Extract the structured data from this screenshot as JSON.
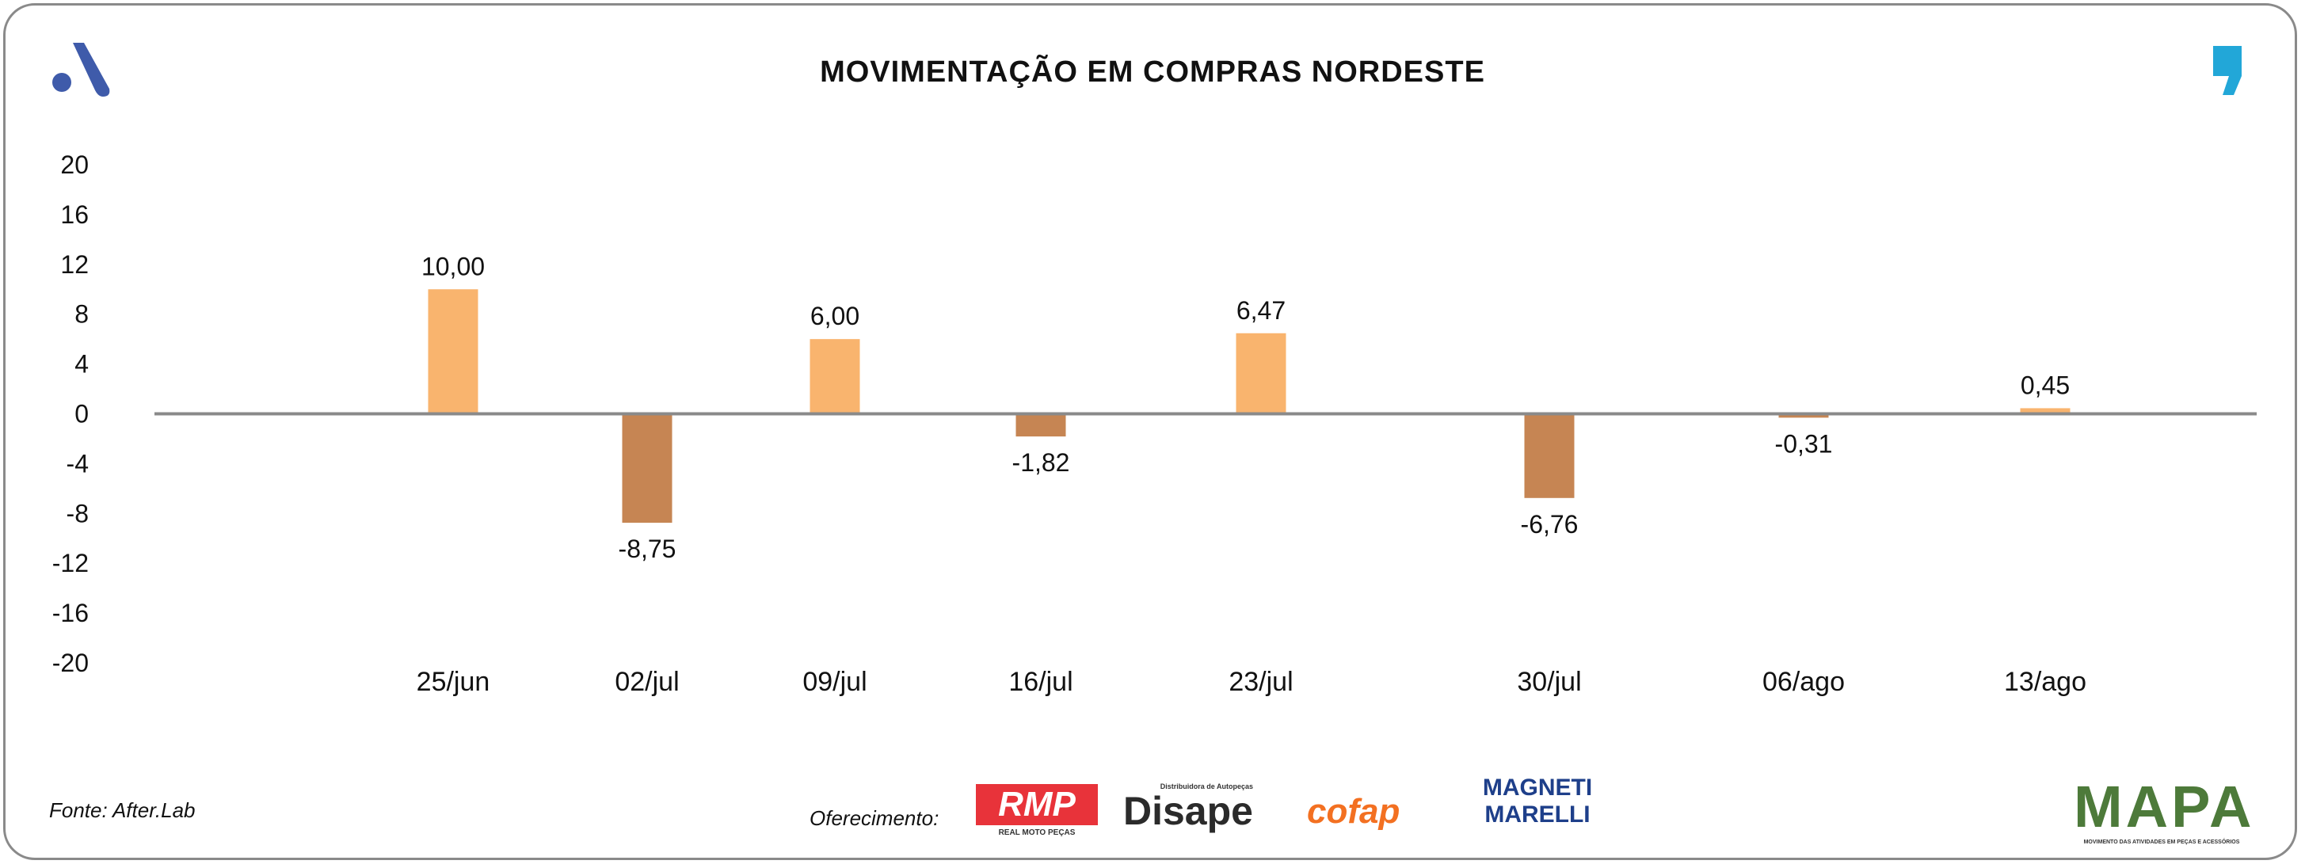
{
  "title": "MOVIMENTAÇÃO EM COMPRAS NORDESTE",
  "footer": {
    "source": "Fonte: After.Lab",
    "sponsor_label": "Oferecimento:",
    "sponsors": [
      "RMP",
      "Disape",
      "cofap",
      "MAGNETI MARELLI"
    ],
    "rmp_sub": "REAL MOTO PEÇAS",
    "disape_sub": "Distribuidora de Autopeças",
    "mapa": "MAPA",
    "mapa_sub": "MOVIMENTO DAS ATIVIDADES EM PEÇAS E ACESSÓRIOS"
  },
  "colors": {
    "positive": "#F9B46E",
    "negative": "#C68553",
    "axis": "#8a8a8a",
    "brand_left": "#3F5BAA",
    "brand_right": "#22A7D8"
  },
  "chart_data": {
    "type": "bar",
    "title": "MOVIMENTAÇÃO EM COMPRAS NORDESTE",
    "categories": [
      "25/jun",
      "02/jul",
      "09/jul",
      "16/jul",
      "23/jul",
      "30/jul",
      "06/ago",
      "13/ago"
    ],
    "values": [
      10.0,
      -8.75,
      6.0,
      -1.82,
      6.47,
      -6.76,
      -0.31,
      0.45
    ],
    "labels": [
      "10,00",
      "-8,75",
      "6,00",
      "-1,82",
      "6,47",
      "-6,76",
      "-0,31",
      "0,45"
    ],
    "yticks": [
      "20",
      "16",
      "12",
      "8",
      "4",
      "0",
      "-4",
      "-8",
      "-12",
      "-16",
      "-20"
    ],
    "ylim": [
      -20,
      20
    ],
    "xlabel": "",
    "ylabel": "",
    "grid": false,
    "legend": "none"
  }
}
